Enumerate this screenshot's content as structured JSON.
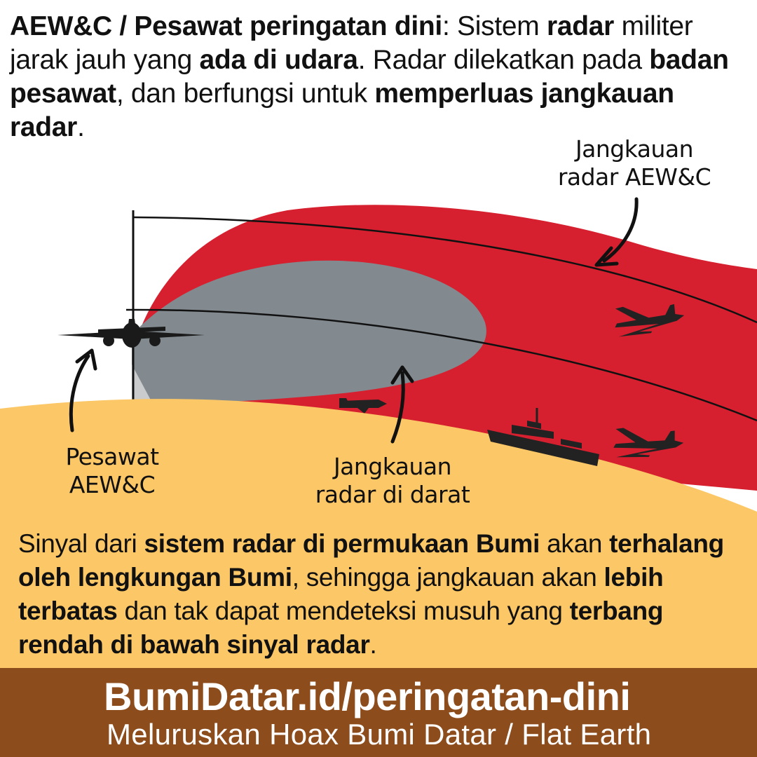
{
  "header": {
    "segments": [
      {
        "text": "AEW&C / Pesawat peringatan dini",
        "bold": true
      },
      {
        "text": ": Sistem ",
        "bold": false
      },
      {
        "text": "radar",
        "bold": true
      },
      {
        "text": " militer jarak jauh yang ",
        "bold": false
      },
      {
        "text": "ada di udara",
        "bold": true
      },
      {
        "text": ". Radar dilekatkan pada ",
        "bold": false
      },
      {
        "text": "badan pesawat",
        "bold": true
      },
      {
        "text": ", dan berfungsi untuk ",
        "bold": false
      },
      {
        "text": "memperluas jangkauan radar",
        "bold": true
      },
      {
        "text": ".",
        "bold": false
      }
    ]
  },
  "diagram": {
    "label_aew_range_line1": "Jangkauan",
    "label_aew_range_line2": "radar AEW&C",
    "label_plane_line1": "Pesawat",
    "label_plane_line2": "AEW&C",
    "label_ground_line1": "Jangkauan",
    "label_ground_line2": "radar di darat",
    "colors": {
      "aew_range": "#d6202f",
      "ground_range": "#828a90",
      "earth": "#fcc766",
      "footer": "#8c4c1c"
    }
  },
  "explanation": {
    "segments": [
      {
        "text": "Sinyal dari ",
        "bold": false
      },
      {
        "text": "sistem radar di permukaan Bumi",
        "bold": true
      },
      {
        "text": " akan ",
        "bold": false
      },
      {
        "text": "terhalang oleh lengkungan Bumi",
        "bold": true
      },
      {
        "text": ", sehingga jangkauan akan ",
        "bold": false
      },
      {
        "text": "lebih terbatas",
        "bold": true
      },
      {
        "text": " dan tak dapat mendeteksi musuh yang ",
        "bold": false
      },
      {
        "text": "terbang rendah di bawah sinyal radar",
        "bold": true
      },
      {
        "text": ".",
        "bold": false
      }
    ]
  },
  "footer": {
    "url": "BumiDatar.id/peringatan-dini",
    "tagline": "Meluruskan Hoax Bumi Datar / Flat Earth",
    "logo_icon": "globe-icon"
  }
}
